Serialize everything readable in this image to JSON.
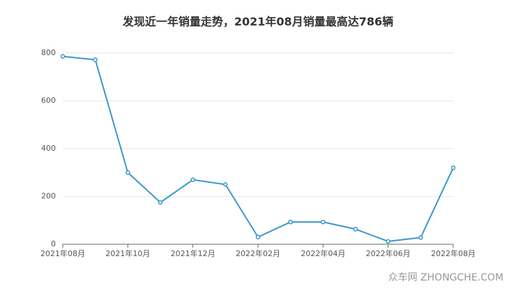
{
  "chart_data": {
    "type": "line",
    "title": "发现近一年销量走势，2021年08月销量最高达786辆",
    "categories": [
      "2021年08月",
      null,
      "2021年10月",
      null,
      "2021年12月",
      null,
      "2022年02月",
      null,
      "2022年04月",
      null,
      "2022年06月",
      null,
      "2022年08月"
    ],
    "series": [
      {
        "name": "销量",
        "color": "#3a97c9",
        "values": [
          786,
          772,
          300,
          175,
          270,
          250,
          30,
          93,
          93,
          63,
          12,
          28,
          320
        ]
      }
    ],
    "ylim": [
      0,
      800
    ],
    "yticks": [
      0,
      200,
      400,
      600,
      800
    ],
    "grid": true,
    "watermark": "众车网 ZHONGCHE.COM"
  }
}
